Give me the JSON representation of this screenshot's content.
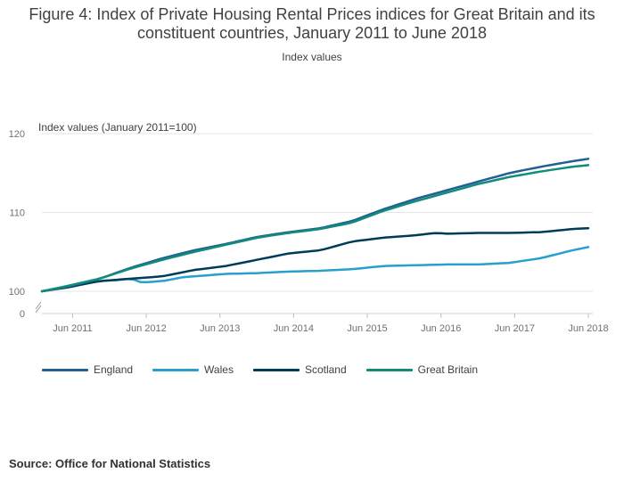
{
  "title": "Figure 4: Index of Private Housing Rental Prices indices for Great Britain and its constituent countries, January 2011 to June 2018",
  "subtitle": "Index values",
  "source": "Source: Office for National Statistics",
  "chart_data": {
    "type": "line",
    "ylabel": "Index values (January 2011=100)",
    "ylim": [
      100,
      120
    ],
    "y_ticks": [
      "120",
      "110",
      "100",
      "0"
    ],
    "axis_break": true,
    "x_ticks": [
      "Jun 2011",
      "Jun 2012",
      "Jun 2013",
      "Jun 2014",
      "Jun 2015",
      "Jun 2016",
      "Jun 2017",
      "Jun 2018"
    ],
    "x_start": "Jan 2011",
    "x_end": "Jun 2018",
    "legend_position": "bottom",
    "grid": true,
    "series": [
      {
        "name": "England",
        "color": "#206095",
        "anchors": [
          [
            0,
            100.0
          ],
          [
            5,
            100.6
          ],
          [
            11,
            101.6
          ],
          [
            17,
            103.0
          ],
          [
            23,
            104.2
          ],
          [
            29,
            105.2
          ],
          [
            35,
            106.0
          ],
          [
            41,
            106.9
          ],
          [
            47,
            107.5
          ],
          [
            53,
            108.0
          ],
          [
            59,
            108.9
          ],
          [
            65,
            110.4
          ],
          [
            71,
            111.7
          ],
          [
            77,
            112.8
          ],
          [
            83,
            113.9
          ],
          [
            89,
            115.0
          ],
          [
            95,
            115.8
          ],
          [
            101,
            116.5
          ],
          [
            104,
            116.8
          ]
        ]
      },
      {
        "name": "Wales",
        "color": "#27a0cc",
        "anchors": [
          [
            0,
            100.0
          ],
          [
            5,
            100.6
          ],
          [
            11,
            101.3
          ],
          [
            14,
            101.4
          ],
          [
            17,
            101.6
          ],
          [
            19,
            101.1
          ],
          [
            23,
            101.3
          ],
          [
            27,
            101.8
          ],
          [
            35,
            102.2
          ],
          [
            41,
            102.3
          ],
          [
            47,
            102.5
          ],
          [
            53,
            102.6
          ],
          [
            59,
            102.8
          ],
          [
            65,
            103.2
          ],
          [
            71,
            103.3
          ],
          [
            77,
            103.4
          ],
          [
            83,
            103.4
          ],
          [
            89,
            103.6
          ],
          [
            95,
            104.2
          ],
          [
            101,
            105.2
          ],
          [
            104,
            105.6
          ]
        ]
      },
      {
        "name": "Scotland",
        "color": "#003c57",
        "anchors": [
          [
            0,
            100.0
          ],
          [
            5,
            100.5
          ],
          [
            11,
            101.3
          ],
          [
            17,
            101.6
          ],
          [
            23,
            101.9
          ],
          [
            29,
            102.7
          ],
          [
            35,
            103.2
          ],
          [
            41,
            104.0
          ],
          [
            47,
            104.8
          ],
          [
            53,
            105.2
          ],
          [
            59,
            106.3
          ],
          [
            65,
            106.8
          ],
          [
            71,
            107.1
          ],
          [
            75,
            107.4
          ],
          [
            77,
            107.3
          ],
          [
            83,
            107.4
          ],
          [
            89,
            107.4
          ],
          [
            95,
            107.5
          ],
          [
            101,
            107.9
          ],
          [
            104,
            108.0
          ]
        ]
      },
      {
        "name": "Great Britain",
        "color": "#118c7b",
        "anchors": [
          [
            0,
            100.0
          ],
          [
            5,
            100.7
          ],
          [
            11,
            101.6
          ],
          [
            17,
            102.9
          ],
          [
            23,
            104.0
          ],
          [
            29,
            105.0
          ],
          [
            35,
            105.9
          ],
          [
            41,
            106.8
          ],
          [
            47,
            107.4
          ],
          [
            53,
            107.9
          ],
          [
            59,
            108.7
          ],
          [
            65,
            110.2
          ],
          [
            71,
            111.4
          ],
          [
            77,
            112.5
          ],
          [
            83,
            113.6
          ],
          [
            89,
            114.5
          ],
          [
            95,
            115.2
          ],
          [
            101,
            115.8
          ],
          [
            104,
            116.0
          ]
        ]
      }
    ]
  }
}
